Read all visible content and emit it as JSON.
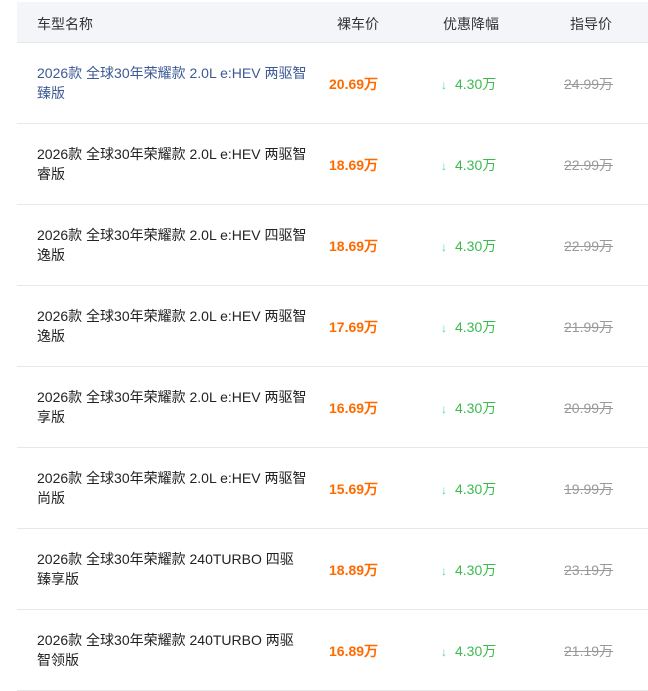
{
  "header": {
    "name": "车型名称",
    "price": "裸车价",
    "discount": "优惠降幅",
    "guide": "指导价"
  },
  "colors": {
    "price": "#ff6a00",
    "discount": "#3cba4e",
    "arrow": "#4cd4a0",
    "guide": "#999999",
    "header_bg": "#f3f5f9"
  },
  "discount_icon": "arrow-down-icon",
  "rows": [
    {
      "name": "2026款 全球30年荣耀款 2.0L e:HEV 两驱智臻版",
      "price": "20.69万",
      "discount": "4.30万",
      "guide": "24.99万"
    },
    {
      "name": "2026款 全球30年荣耀款 2.0L e:HEV 两驱智睿版",
      "price": "18.69万",
      "discount": "4.30万",
      "guide": "22.99万"
    },
    {
      "name": "2026款 全球30年荣耀款 2.0L e:HEV 四驱智逸版",
      "price": "18.69万",
      "discount": "4.30万",
      "guide": "22.99万"
    },
    {
      "name": "2026款 全球30年荣耀款 2.0L e:HEV 两驱智逸版",
      "price": "17.69万",
      "discount": "4.30万",
      "guide": "21.99万"
    },
    {
      "name": "2026款 全球30年荣耀款 2.0L e:HEV 两驱智享版",
      "price": "16.69万",
      "discount": "4.30万",
      "guide": "20.99万"
    },
    {
      "name": "2026款 全球30年荣耀款 2.0L e:HEV 两驱智尚版",
      "price": "15.69万",
      "discount": "4.30万",
      "guide": "19.99万"
    },
    {
      "name": "2026款 全球30年荣耀款 240TURBO 四驱臻享版",
      "price": "18.89万",
      "discount": "4.30万",
      "guide": "23.19万"
    },
    {
      "name": "2026款 全球30年荣耀款 240TURBO 两驱智领版",
      "price": "16.89万",
      "discount": "4.30万",
      "guide": "21.19万"
    }
  ]
}
